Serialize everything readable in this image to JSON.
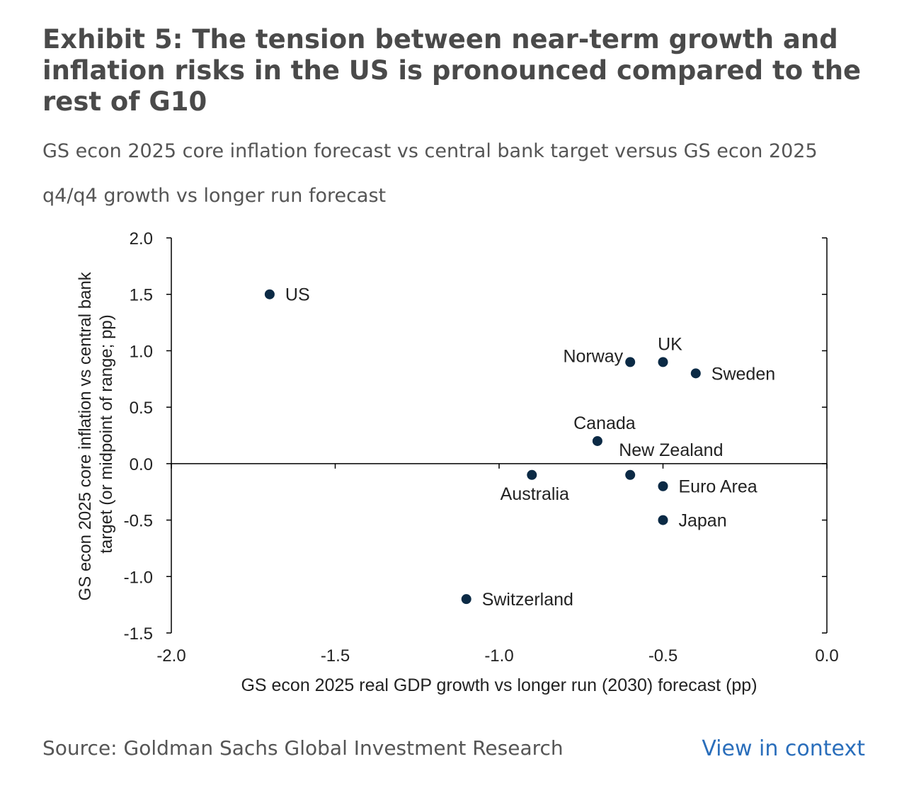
{
  "header": {
    "title": "Exhibit 5: The tension between near-term growth and inflation risks in the US is pronounced compared to the rest of G10",
    "subtitle": "GS econ 2025 core inflation forecast vs central bank target versus GS econ 2025 q4/q4 growth vs longer run forecast"
  },
  "footer": {
    "source": "Source: Goldman Sachs Global Investment Research",
    "link": "View in context"
  },
  "colors": {
    "point": "#0b2a45",
    "link": "#2a6ebb",
    "axis": "#000000"
  },
  "chart_data": {
    "type": "scatter",
    "xlabel": "GS econ 2025 real GDP growth vs longer run (2030) forecast (pp)",
    "ylabel": "GS econ 2025 core inflation vs central bank target (or midpoint of range; pp)",
    "ylabel_lines": [
      "GS econ 2025 core inflation vs central bank",
      "target (or midpoint of range; pp)"
    ],
    "xlim": [
      -2.0,
      0.0
    ],
    "ylim": [
      -1.5,
      2.0
    ],
    "xticks": [
      -2.0,
      -1.5,
      -1.0,
      -0.5,
      0.0
    ],
    "xtick_labels": [
      "-2.0",
      "-1.5",
      "-1.0",
      "-0.5",
      "0.0"
    ],
    "yticks": [
      -1.5,
      -1.0,
      -0.5,
      0.0,
      0.5,
      1.0,
      1.5,
      2.0
    ],
    "ytick_labels": [
      "-1.5",
      "-1.0",
      "-0.5",
      "0.0",
      "0.5",
      "1.0",
      "1.5",
      "2.0"
    ],
    "grid": false,
    "points": [
      {
        "label": "US",
        "x": -1.7,
        "y": 1.5,
        "label_pos": "right"
      },
      {
        "label": "Norway",
        "x": -0.6,
        "y": 0.9,
        "label_pos": "left"
      },
      {
        "label": "UK",
        "x": -0.5,
        "y": 0.9,
        "label_pos": "above"
      },
      {
        "label": "Sweden",
        "x": -0.4,
        "y": 0.8,
        "label_pos": "right"
      },
      {
        "label": "Canada",
        "x": -0.7,
        "y": 0.2,
        "label_pos": "above"
      },
      {
        "label": "New Zealand",
        "x": -0.6,
        "y": -0.1,
        "label_pos": "above-right"
      },
      {
        "label": "Australia",
        "x": -0.9,
        "y": -0.1,
        "label_pos": "below"
      },
      {
        "label": "Euro Area",
        "x": -0.5,
        "y": -0.2,
        "label_pos": "right"
      },
      {
        "label": "Japan",
        "x": -0.5,
        "y": -0.5,
        "label_pos": "right"
      },
      {
        "label": "Switzerland",
        "x": -1.1,
        "y": -1.2,
        "label_pos": "right"
      }
    ]
  }
}
